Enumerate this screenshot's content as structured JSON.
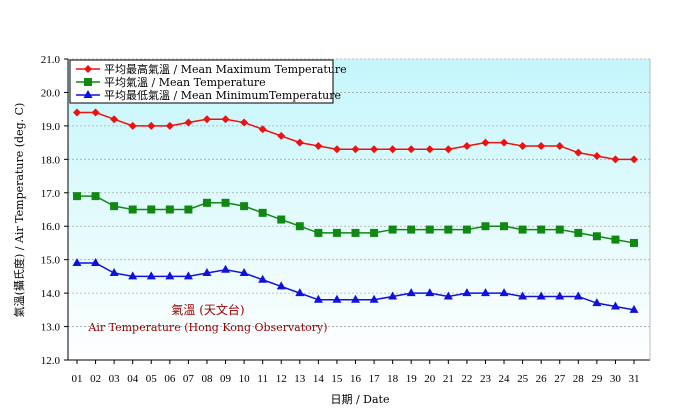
{
  "chart_data": {
    "type": "line",
    "title": "",
    "xlabel": "日期 / Date",
    "ylabel": "氣溫(攝氏度) / Air Temperature (deg. C)",
    "ylim": [
      12.0,
      21.0
    ],
    "yticks": [
      "12.0",
      "13.0",
      "14.0",
      "15.0",
      "16.0",
      "17.0",
      "18.0",
      "19.0",
      "20.0",
      "21.0"
    ],
    "categories": [
      "01",
      "02",
      "03",
      "04",
      "05",
      "06",
      "07",
      "08",
      "09",
      "10",
      "11",
      "12",
      "13",
      "14",
      "15",
      "16",
      "17",
      "18",
      "19",
      "20",
      "21",
      "22",
      "23",
      "24",
      "25",
      "26",
      "27",
      "28",
      "29",
      "30",
      "31"
    ],
    "grid": true,
    "legend_position": "top-left",
    "annotation": {
      "line1": "氣溫 (天文台)",
      "line2": "Air Temperature (Hong Kong Observatory)",
      "color": "#990000"
    },
    "series": [
      {
        "name": "平均最高氣溫 / Mean Maximum Temperature",
        "color": "#ee1111",
        "marker": "diamond",
        "values": [
          19.4,
          19.4,
          19.2,
          19.0,
          19.0,
          19.0,
          19.1,
          19.2,
          19.2,
          19.1,
          18.9,
          18.7,
          18.5,
          18.4,
          18.3,
          18.3,
          18.3,
          18.3,
          18.3,
          18.3,
          18.3,
          18.4,
          18.5,
          18.5,
          18.4,
          18.4,
          18.4,
          18.2,
          18.1,
          18.0,
          18.0
        ]
      },
      {
        "name": "平均氣溫 / Mean Temperature",
        "color": "#118811",
        "marker": "square",
        "values": [
          16.9,
          16.9,
          16.6,
          16.5,
          16.5,
          16.5,
          16.5,
          16.7,
          16.7,
          16.6,
          16.4,
          16.2,
          16.0,
          15.8,
          15.8,
          15.8,
          15.8,
          15.9,
          15.9,
          15.9,
          15.9,
          15.9,
          16.0,
          16.0,
          15.9,
          15.9,
          15.9,
          15.8,
          15.7,
          15.6,
          15.5
        ]
      },
      {
        "name": "平均最低氣溫 / Mean MinimumTemperature",
        "color": "#1111dd",
        "marker": "triangle",
        "values": [
          14.9,
          14.9,
          14.6,
          14.5,
          14.5,
          14.5,
          14.5,
          14.6,
          14.7,
          14.6,
          14.4,
          14.2,
          14.0,
          13.8,
          13.8,
          13.8,
          13.8,
          13.9,
          14.0,
          14.0,
          13.9,
          14.0,
          14.0,
          14.0,
          13.9,
          13.9,
          13.9,
          13.9,
          13.7,
          13.6,
          13.5
        ]
      }
    ]
  }
}
